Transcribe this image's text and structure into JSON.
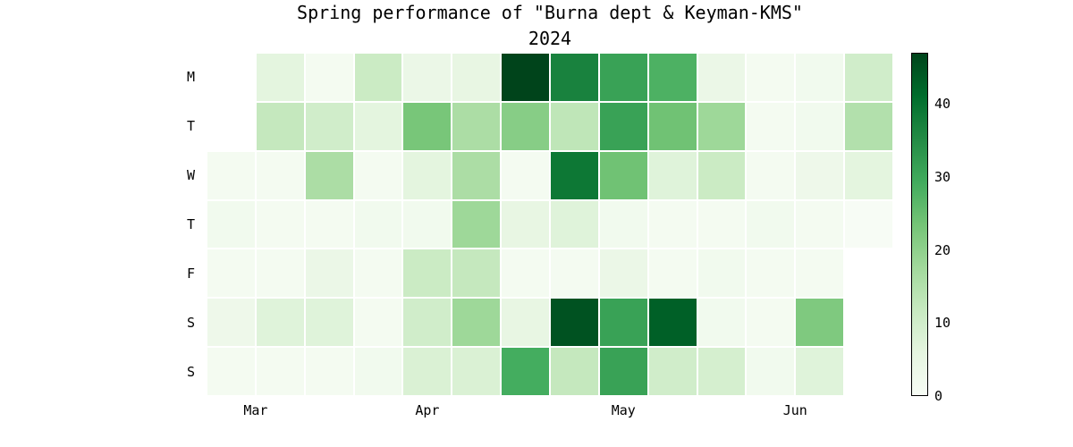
{
  "title": "Spring performance of \"Burna dept & Keyman-KMS\"",
  "subtitle": "2024",
  "chart_data": {
    "type": "heatmap",
    "description": "Calendar heatmap of daily values for spring 2024; rows are weekdays (Mon-Sun), columns are 14 consecutive weeks from late March to late June; empty cells are days outside the spring range",
    "title": "Spring performance of \"Burna dept & Keyman-KMS\"",
    "subtitle": "2024",
    "y_axis": {
      "tick_labels": [
        "M",
        "T",
        "W",
        "T",
        "F",
        "S",
        "S"
      ]
    },
    "x_axis": {
      "tick_labels": [
        "Mar",
        "Apr",
        "May",
        "Jun"
      ],
      "tick_week_offsets": [
        1.0,
        4.5,
        8.5,
        12.0
      ]
    },
    "weeks": 14,
    "vmin": 0,
    "vmax": 47,
    "grid": false,
    "legend_position": "right-colorbar",
    "colormap": {
      "name": "Greens",
      "stops": [
        "#f7fcf5",
        "#e5f5e0",
        "#c7e9c0",
        "#a1d99b",
        "#74c476",
        "#41ab5d",
        "#238b45",
        "#006d2c",
        "#00441b"
      ]
    },
    "colorbar": {
      "ticks": [
        0,
        10,
        20,
        30,
        40
      ]
    },
    "values": [
      [
        null,
        6,
        1,
        11,
        4,
        5,
        47,
        37,
        31,
        28,
        4,
        1,
        2,
        10
      ],
      [
        null,
        12,
        10,
        6,
        23,
        16,
        21,
        13,
        31,
        24,
        18,
        1,
        2,
        15
      ],
      [
        1,
        1,
        16,
        1,
        6,
        16,
        1,
        39,
        24,
        7,
        11,
        1,
        3,
        6
      ],
      [
        2,
        1,
        1,
        2,
        2,
        18,
        5,
        7,
        2,
        1,
        1,
        2,
        1,
        0
      ],
      [
        1,
        1,
        4,
        1,
        11,
        12,
        1,
        1,
        4,
        1,
        2,
        1,
        1,
        null
      ],
      [
        3,
        7,
        7,
        1,
        10,
        18,
        5,
        45,
        31,
        43,
        2,
        1,
        22,
        null
      ],
      [
        1,
        1,
        1,
        2,
        8,
        8,
        29,
        12,
        31,
        10,
        9,
        2,
        7,
        null
      ]
    ]
  }
}
